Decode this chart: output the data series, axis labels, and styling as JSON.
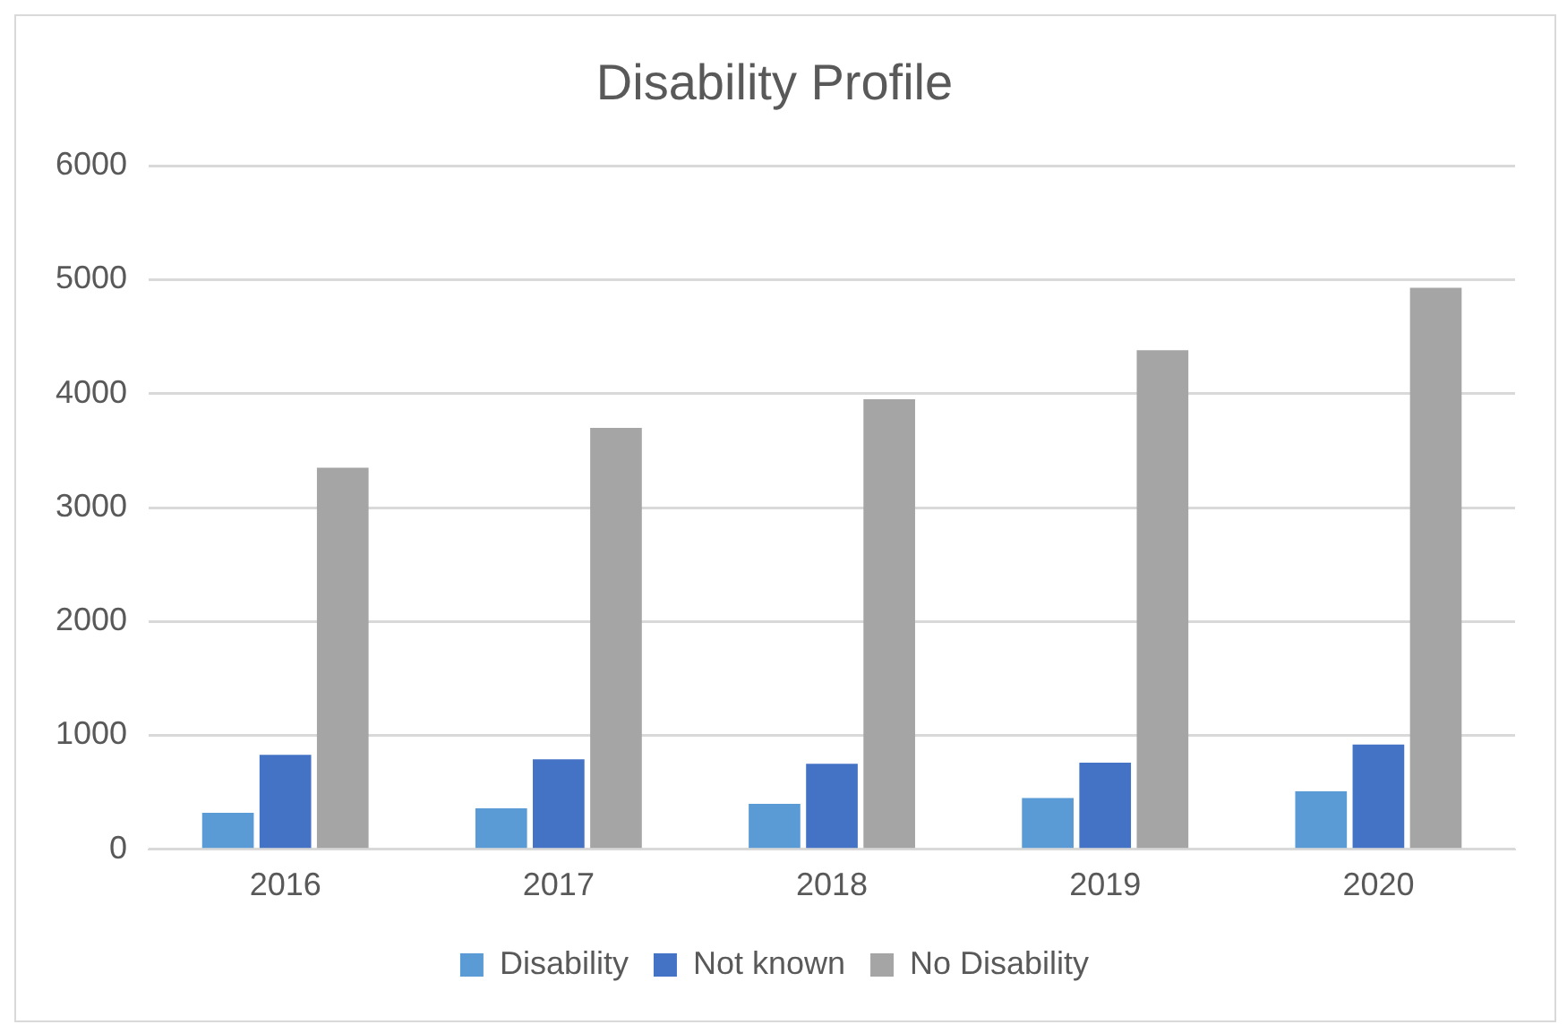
{
  "chart_data": {
    "type": "bar",
    "title": "Disability Profile",
    "categories": [
      "2016",
      "2017",
      "2018",
      "2019",
      "2020"
    ],
    "series": [
      {
        "name": "Disability",
        "color": "#5b9bd5",
        "values": [
          320,
          360,
          400,
          450,
          510
        ]
      },
      {
        "name": "Not known",
        "color": "#4472c4",
        "values": [
          830,
          790,
          750,
          760,
          920
        ]
      },
      {
        "name": "No Disability",
        "color": "#a5a5a5",
        "values": [
          3350,
          3700,
          3950,
          4380,
          4930
        ]
      }
    ],
    "ylim": [
      0,
      6000
    ],
    "yticks": [
      0,
      1000,
      2000,
      3000,
      4000,
      5000,
      6000
    ],
    "grid": "y",
    "legend": "bottom"
  }
}
